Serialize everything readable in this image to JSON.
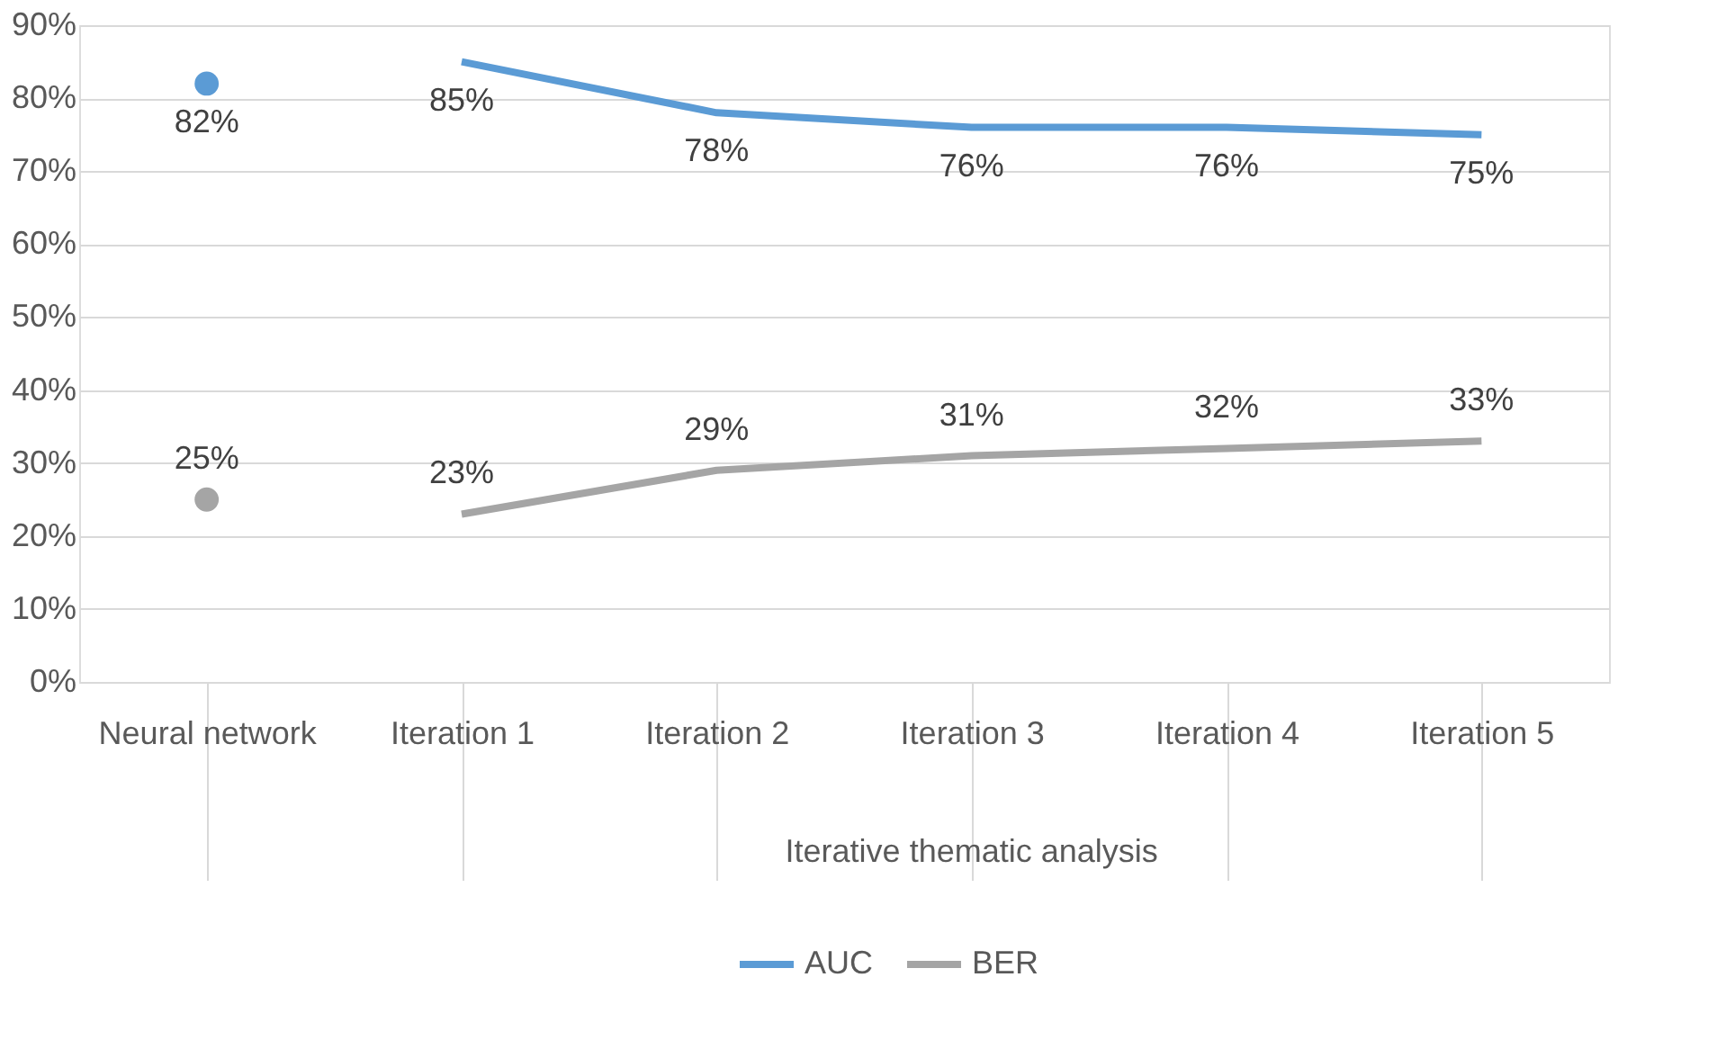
{
  "chart_data": {
    "type": "line",
    "categories": [
      "Neural network",
      "Iteration 1",
      "Iteration 2",
      "Iteration 3",
      "Iteration 4",
      "Iteration 5"
    ],
    "series": [
      {
        "name": "AUC",
        "color": "#5b9bd5",
        "values": [
          null,
          85,
          78,
          76,
          76,
          75
        ],
        "value_labels": [
          null,
          "85%",
          "78%",
          "76%",
          "76%",
          "75%"
        ]
      },
      {
        "name": "BER",
        "color": "#a5a5a5",
        "values": [
          null,
          23,
          29,
          31,
          32,
          33
        ],
        "value_labels": [
          null,
          "23%",
          "29%",
          "31%",
          "32%",
          "33%"
        ]
      },
      {
        "type": "scatter",
        "color": "#5b9bd5",
        "values": [
          82,
          null,
          null,
          null,
          null,
          null
        ],
        "value_labels": [
          "82%",
          null,
          null,
          null,
          null,
          null
        ]
      },
      {
        "type": "scatter",
        "color": "#a5a5a5",
        "values": [
          25,
          null,
          null,
          null,
          null,
          null
        ],
        "value_labels": [
          "25%",
          null,
          null,
          null,
          null,
          null
        ]
      }
    ],
    "ylim": [
      0,
      90
    ],
    "yticks": [
      {
        "value": 0,
        "label": "0%"
      },
      {
        "value": 10,
        "label": "10%"
      },
      {
        "value": 20,
        "label": "20%"
      },
      {
        "value": 30,
        "label": "30%"
      },
      {
        "value": 40,
        "label": "40%"
      },
      {
        "value": 50,
        "label": "50%"
      },
      {
        "value": 60,
        "label": "60%"
      },
      {
        "value": 70,
        "label": "70%"
      },
      {
        "value": 80,
        "label": "80%"
      },
      {
        "value": 90,
        "label": "90%"
      }
    ],
    "grid": "y",
    "legend": "bottom",
    "annotations": [
      "Iterative thematic analysis"
    ]
  }
}
